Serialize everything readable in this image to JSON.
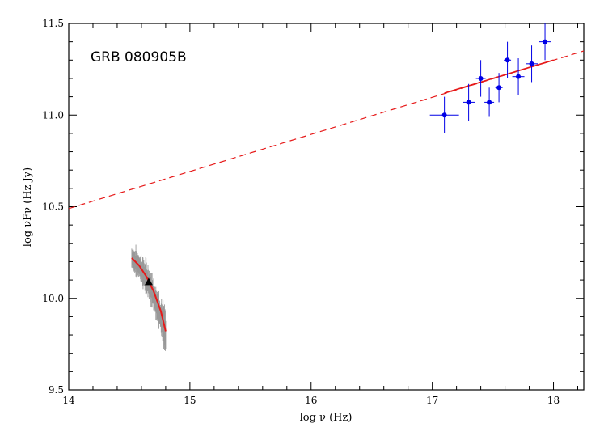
{
  "chart_data": {
    "type": "scatter",
    "title": "GRB 080905B",
    "xlabel": "log ν (Hz)",
    "ylabel": "log νFν (Hz Jy)",
    "xlim": [
      14,
      18.25
    ],
    "ylim": [
      9.5,
      11.5
    ],
    "x_ticks": [
      14,
      15,
      16,
      17,
      18
    ],
    "y_ticks": [
      9.5,
      10.0,
      10.5,
      11.0,
      11.5
    ],
    "x_tick_labels": [
      "14",
      "15",
      "16",
      "17",
      "18"
    ],
    "y_tick_labels": [
      "9.5",
      "10.0",
      "10.5",
      "11.0",
      "11.5"
    ],
    "grid": false,
    "colors": {
      "xray": "#0000e6",
      "model": "#e61919",
      "optical": "#999999",
      "marker": "#000000"
    },
    "series": [
      {
        "kind": "xray-points",
        "points": [
          {
            "x": 17.1,
            "y": 11.0,
            "xerr": 0.12,
            "yerr": 0.1
          },
          {
            "x": 17.3,
            "y": 11.07,
            "xerr": 0.05,
            "yerr": 0.1
          },
          {
            "x": 17.4,
            "y": 11.2,
            "xerr": 0.04,
            "yerr": 0.1
          },
          {
            "x": 17.47,
            "y": 11.07,
            "xerr": 0.04,
            "yerr": 0.08
          },
          {
            "x": 17.55,
            "y": 11.15,
            "xerr": 0.03,
            "yerr": 0.08
          },
          {
            "x": 17.62,
            "y": 11.3,
            "xerr": 0.03,
            "yerr": 0.1
          },
          {
            "x": 17.71,
            "y": 11.21,
            "xerr": 0.05,
            "yerr": 0.1
          },
          {
            "x": 17.82,
            "y": 11.28,
            "xerr": 0.05,
            "yerr": 0.1
          },
          {
            "x": 17.93,
            "y": 11.4,
            "xerr": 0.05,
            "yerr": 0.1
          }
        ]
      },
      {
        "kind": "power-law-model",
        "dashed": [
          [
            14.0,
            10.49
          ],
          [
            18.25,
            11.35
          ]
        ],
        "solid": [
          [
            17.1,
            11.12
          ],
          [
            18.0,
            11.3
          ]
        ]
      },
      {
        "kind": "optical-spectrum",
        "x_range": [
          14.52,
          14.8
        ],
        "y_start": 10.22,
        "y_end": 9.81,
        "noise": 0.05
      },
      {
        "kind": "optical-model",
        "points": [
          [
            14.52,
            10.22
          ],
          [
            14.58,
            10.18
          ],
          [
            14.64,
            10.12
          ],
          [
            14.7,
            10.04
          ],
          [
            14.76,
            9.93
          ],
          [
            14.8,
            9.82
          ]
        ]
      },
      {
        "kind": "photometry-point",
        "points": [
          {
            "x": 14.66,
            "y": 10.09
          }
        ]
      }
    ]
  }
}
